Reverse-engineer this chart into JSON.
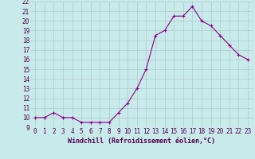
{
  "x": [
    0,
    1,
    2,
    3,
    4,
    5,
    6,
    7,
    8,
    9,
    10,
    11,
    12,
    13,
    14,
    15,
    16,
    17,
    18,
    19,
    20,
    21,
    22,
    23
  ],
  "y": [
    10.0,
    10.0,
    10.5,
    10.0,
    10.0,
    9.5,
    9.5,
    9.5,
    9.5,
    10.5,
    11.5,
    13.0,
    15.0,
    18.5,
    19.0,
    20.5,
    20.5,
    21.5,
    20.0,
    19.5,
    18.5,
    17.5,
    16.5,
    16.0
  ],
  "line_color": "#8b008b",
  "marker": "+",
  "marker_size": 3,
  "background_color": "#c8eaea",
  "grid_color": "#b0c8c8",
  "xlabel": "Windchill (Refroidissement éolien,°C)",
  "xlabel_fontsize": 6.0,
  "tick_fontsize": 5.5,
  "ylim": [
    9,
    22
  ],
  "yticks": [
    9,
    10,
    11,
    12,
    13,
    14,
    15,
    16,
    17,
    18,
    19,
    20,
    21,
    22
  ],
  "xticks": [
    0,
    1,
    2,
    3,
    4,
    5,
    6,
    7,
    8,
    9,
    10,
    11,
    12,
    13,
    14,
    15,
    16,
    17,
    18,
    19,
    20,
    21,
    22,
    23
  ]
}
